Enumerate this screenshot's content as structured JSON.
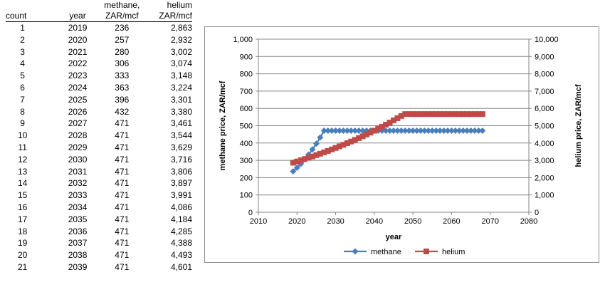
{
  "table": {
    "headers": [
      {
        "line1": "",
        "line2": "count"
      },
      {
        "line1": "",
        "line2": "year"
      },
      {
        "line1": "methane,",
        "line2": "ZAR/mcf"
      },
      {
        "line1": "helium",
        "line2": "ZAR/mcf"
      }
    ],
    "rows": [
      [
        "1",
        "2019",
        "236",
        "2,863"
      ],
      [
        "2",
        "2020",
        "257",
        "2,932"
      ],
      [
        "3",
        "2021",
        "280",
        "3,002"
      ],
      [
        "4",
        "2022",
        "306",
        "3,074"
      ],
      [
        "5",
        "2023",
        "333",
        "3,148"
      ],
      [
        "6",
        "2024",
        "363",
        "3,224"
      ],
      [
        "7",
        "2025",
        "396",
        "3,301"
      ],
      [
        "8",
        "2026",
        "432",
        "3,380"
      ],
      [
        "9",
        "2027",
        "471",
        "3,461"
      ],
      [
        "10",
        "2028",
        "471",
        "3,544"
      ],
      [
        "11",
        "2029",
        "471",
        "3,629"
      ],
      [
        "12",
        "2030",
        "471",
        "3,716"
      ],
      [
        "13",
        "2031",
        "471",
        "3,806"
      ],
      [
        "14",
        "2032",
        "471",
        "3,897"
      ],
      [
        "15",
        "2033",
        "471",
        "3,991"
      ],
      [
        "16",
        "2034",
        "471",
        "4,086"
      ],
      [
        "17",
        "2035",
        "471",
        "4,184"
      ],
      [
        "18",
        "2036",
        "471",
        "4,285"
      ],
      [
        "19",
        "2037",
        "471",
        "4,388"
      ],
      [
        "20",
        "2038",
        "471",
        "4,493"
      ],
      [
        "21",
        "2039",
        "471",
        "4,601"
      ]
    ]
  },
  "chart_data": {
    "type": "line",
    "xlabel": "year",
    "ylabel": "methane price, ZAR/mcf",
    "y2label": "helium price, ZAR/mcf",
    "xlim": [
      2010,
      2080
    ],
    "xticks": [
      2010,
      2020,
      2030,
      2040,
      2050,
      2060,
      2070,
      2080
    ],
    "ylim": [
      0,
      1000
    ],
    "yticks": [
      "0",
      "100",
      "200",
      "300",
      "400",
      "500",
      "600",
      "700",
      "800",
      "900",
      "1,000"
    ],
    "y2lim": [
      0,
      10000
    ],
    "y2ticks": [
      "0",
      "1,000",
      "2,000",
      "3,000",
      "4,000",
      "5,000",
      "6,000",
      "7,000",
      "8,000",
      "9,000",
      "10,000"
    ],
    "grid": "horizontal",
    "legend": "bottom",
    "series": [
      {
        "name": "methane",
        "axis": "left",
        "color": "#4a7ebb",
        "marker": "diamond",
        "x": [
          2019,
          2020,
          2021,
          2022,
          2023,
          2024,
          2025,
          2026,
          2027,
          2028,
          2029,
          2030,
          2031,
          2032,
          2033,
          2034,
          2035,
          2036,
          2037,
          2038,
          2039,
          2040,
          2041,
          2042,
          2043,
          2044,
          2045,
          2046,
          2047,
          2048,
          2049,
          2050,
          2051,
          2052,
          2053,
          2054,
          2055,
          2056,
          2057,
          2058,
          2059,
          2060,
          2061,
          2062,
          2063,
          2064,
          2065,
          2066,
          2067,
          2068
        ],
        "values": [
          236,
          257,
          280,
          306,
          333,
          363,
          396,
          432,
          471,
          471,
          471,
          471,
          471,
          471,
          471,
          471,
          471,
          471,
          471,
          471,
          471,
          471,
          471,
          471,
          471,
          471,
          471,
          471,
          471,
          471,
          471,
          471,
          471,
          471,
          471,
          471,
          471,
          471,
          471,
          471,
          471,
          471,
          471,
          471,
          471,
          471,
          471,
          471,
          471,
          471
        ]
      },
      {
        "name": "helium",
        "axis": "right",
        "color": "#be4b48",
        "marker": "square",
        "x": [
          2019,
          2020,
          2021,
          2022,
          2023,
          2024,
          2025,
          2026,
          2027,
          2028,
          2029,
          2030,
          2031,
          2032,
          2033,
          2034,
          2035,
          2036,
          2037,
          2038,
          2039,
          2040,
          2041,
          2042,
          2043,
          2044,
          2045,
          2046,
          2047,
          2048,
          2049,
          2050,
          2051,
          2052,
          2053,
          2054,
          2055,
          2056,
          2057,
          2058,
          2059,
          2060,
          2061,
          2062,
          2063,
          2064,
          2065,
          2066,
          2067,
          2068
        ],
        "values": [
          2863,
          2932,
          3002,
          3074,
          3148,
          3224,
          3301,
          3380,
          3461,
          3544,
          3629,
          3716,
          3806,
          3897,
          3991,
          4086,
          4184,
          4285,
          4388,
          4493,
          4601,
          4712,
          4825,
          4941,
          5060,
          5181,
          5306,
          5433,
          5564,
          5672,
          5672,
          5672,
          5672,
          5672,
          5672,
          5672,
          5672,
          5672,
          5672,
          5672,
          5672,
          5672,
          5672,
          5672,
          5672,
          5672,
          5672,
          5672,
          5672,
          5672
        ]
      }
    ]
  }
}
